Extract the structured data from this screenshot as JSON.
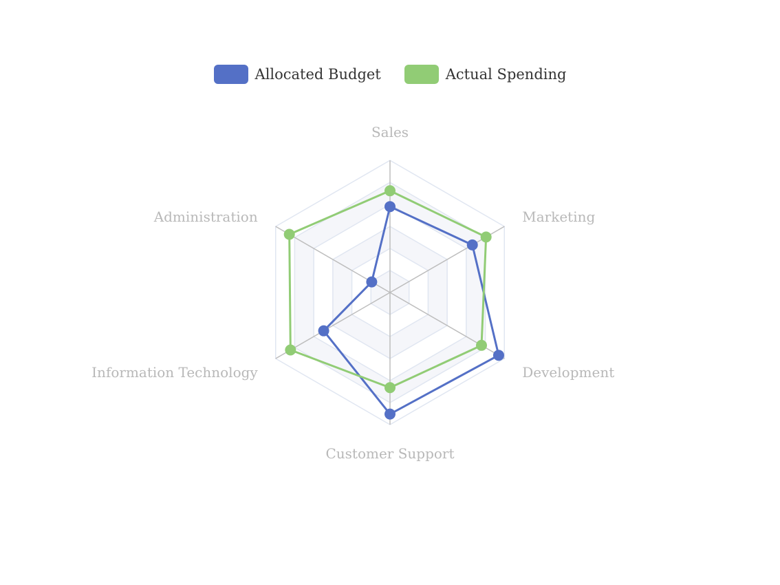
{
  "chart_data": {
    "type": "radar",
    "indicators": [
      {
        "name": "Sales",
        "max": 100
      },
      {
        "name": "Marketing",
        "max": 100
      },
      {
        "name": "Development",
        "max": 100
      },
      {
        "name": "Customer Support",
        "max": 100
      },
      {
        "name": "Information Technology",
        "max": 100
      },
      {
        "name": "Administration",
        "max": 100
      }
    ],
    "series": [
      {
        "name": "Allocated Budget",
        "color": "#5470c6",
        "values": [
          65,
          72,
          95,
          92,
          58,
          16
        ]
      },
      {
        "name": "Actual Spending",
        "color": "#91cc75",
        "values": [
          77,
          84,
          80,
          72,
          87,
          88
        ]
      }
    ],
    "split_number": 3,
    "legend_position": "top-center",
    "colors": {
      "split_area_1": "#f5f6fa",
      "split_area_2": "#ffffff",
      "split_line": "#e0e6f1",
      "axis_line": "#bdbdbd",
      "axis_label": "#b8b8b8"
    }
  }
}
